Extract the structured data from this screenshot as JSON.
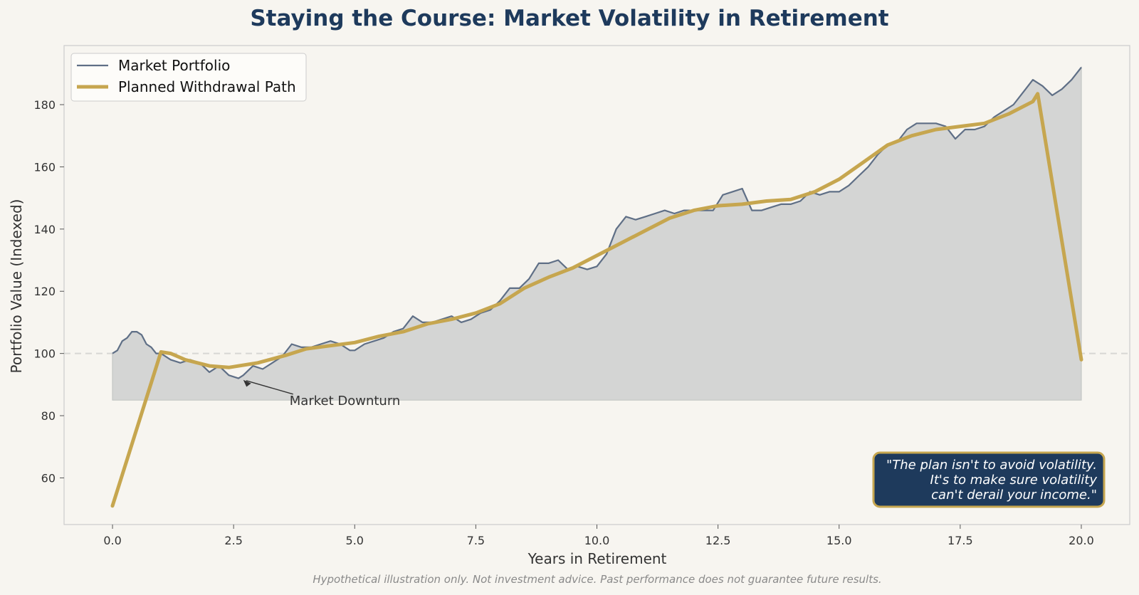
{
  "chart_data": {
    "type": "line",
    "title": "Staying the Course: Market Volatility in Retirement",
    "xlabel": "Years in Retirement",
    "ylabel": "Portfolio Value (Indexed)",
    "xlim": [
      -1.0,
      21.0
    ],
    "ylim": [
      45,
      199
    ],
    "x_ticks": [
      0.0,
      2.5,
      5.0,
      7.5,
      10.0,
      12.5,
      15.0,
      17.5,
      20.0
    ],
    "x_tick_labels": [
      "0.0",
      "2.5",
      "5.0",
      "7.5",
      "10.0",
      "12.5",
      "15.0",
      "17.5",
      "20.0"
    ],
    "y_ticks": [
      60,
      80,
      100,
      120,
      140,
      160,
      180
    ],
    "y_tick_labels": [
      "60",
      "80",
      "100",
      "120",
      "140",
      "160",
      "180"
    ],
    "grid": false,
    "reference_line": {
      "y": 100,
      "style": "dashed"
    },
    "fill_baseline": 85,
    "legend": {
      "placement": "top-left",
      "entries": [
        "Market Portfolio",
        "Planned Withdrawal Path"
      ]
    },
    "colors": {
      "market": "#5f6f86",
      "planned": "#c6a64f",
      "fill": "#d4d5d4",
      "quote_bg": "#1e3a5c",
      "quote_border": "#c6a64f",
      "title": "#1e3a5c"
    },
    "series": [
      {
        "name": "Market Portfolio",
        "x": [
          0,
          0.1,
          0.2,
          0.3,
          0.4,
          0.5,
          0.6,
          0.7,
          0.8,
          0.9,
          1.0,
          1.2,
          1.4,
          1.6,
          1.8,
          2.0,
          2.2,
          2.4,
          2.6,
          2.7,
          2.9,
          3.1,
          3.3,
          3.5,
          3.7,
          3.9,
          4.1,
          4.3,
          4.5,
          4.7,
          4.9,
          5.0,
          5.2,
          5.4,
          5.6,
          5.8,
          6.0,
          6.2,
          6.4,
          6.6,
          6.8,
          7.0,
          7.2,
          7.4,
          7.6,
          7.8,
          8.0,
          8.2,
          8.4,
          8.6,
          8.8,
          9.0,
          9.2,
          9.4,
          9.6,
          9.8,
          10.0,
          10.2,
          10.4,
          10.6,
          10.8,
          11.0,
          11.2,
          11.4,
          11.6,
          11.8,
          12.0,
          12.2,
          12.4,
          12.6,
          12.8,
          13.0,
          13.2,
          13.4,
          13.6,
          13.8,
          14.0,
          14.2,
          14.4,
          14.6,
          14.8,
          15.0,
          15.2,
          15.4,
          15.6,
          15.8,
          16.0,
          16.2,
          16.4,
          16.6,
          16.8,
          17.0,
          17.2,
          17.4,
          17.6,
          17.8,
          18.0,
          18.2,
          18.4,
          18.6,
          18.8,
          19.0,
          19.2,
          19.4,
          19.6,
          19.8,
          20.0
        ],
        "y": [
          100,
          101,
          104,
          105,
          107,
          107,
          106,
          103,
          102,
          100,
          100,
          98,
          97,
          98,
          97,
          94,
          96,
          93,
          92,
          93,
          96,
          95,
          97,
          99,
          103,
          102,
          102,
          103,
          104,
          103,
          101,
          101,
          103,
          104,
          105,
          107,
          108,
          112,
          110,
          110,
          111,
          112,
          110,
          111,
          113,
          114,
          117,
          121,
          121,
          124,
          129,
          129,
          130,
          127,
          128,
          127,
          128,
          132,
          140,
          144,
          143,
          144,
          145,
          146,
          145,
          146,
          146,
          146,
          146,
          151,
          152,
          153,
          146,
          146,
          147,
          148,
          148,
          149,
          152,
          151,
          152,
          152,
          154,
          157,
          160,
          164,
          167,
          168,
          172,
          174,
          174,
          174,
          173,
          169,
          172,
          172,
          173,
          176,
          178,
          180,
          184,
          188,
          186,
          183,
          185,
          188,
          192
        ]
      },
      {
        "name": "Planned Withdrawal Path",
        "x": [
          0,
          1.0,
          1.2,
          1.5,
          2.0,
          2.4,
          3.0,
          3.6,
          4.0,
          4.5,
          5.0,
          5.5,
          6.0,
          6.5,
          7.0,
          7.5,
          8.0,
          8.5,
          9.0,
          9.5,
          10.0,
          10.5,
          11.0,
          11.5,
          12.0,
          12.5,
          13.0,
          13.5,
          14.0,
          14.5,
          15.0,
          15.5,
          16.0,
          16.5,
          17.0,
          17.5,
          18.0,
          18.5,
          19.0,
          19.1,
          20.0
        ],
        "y": [
          51,
          100.5,
          100,
          98,
          96,
          95.5,
          97,
          99.5,
          101.5,
          102.5,
          103.5,
          105.5,
          107,
          109.5,
          111,
          113,
          116,
          121,
          124.5,
          127.5,
          131.5,
          135.5,
          139.5,
          143.5,
          146,
          147.5,
          148,
          149,
          149.5,
          152,
          156,
          161.5,
          167,
          170,
          172,
          173,
          174,
          177,
          181,
          183.5,
          98
        ]
      }
    ],
    "annotations": [
      {
        "text": "Market Downturn",
        "x": 2.7,
        "y": 91.5
      }
    ],
    "quote_box": {
      "lines": [
        "\"The plan isn't to avoid volatility.",
        "It's to make sure volatility",
        "can't derail your income.\""
      ],
      "placement": "bottom-right"
    },
    "footnote": "Hypothetical illustration only. Not investment advice. Past performance does not guarantee future results."
  }
}
